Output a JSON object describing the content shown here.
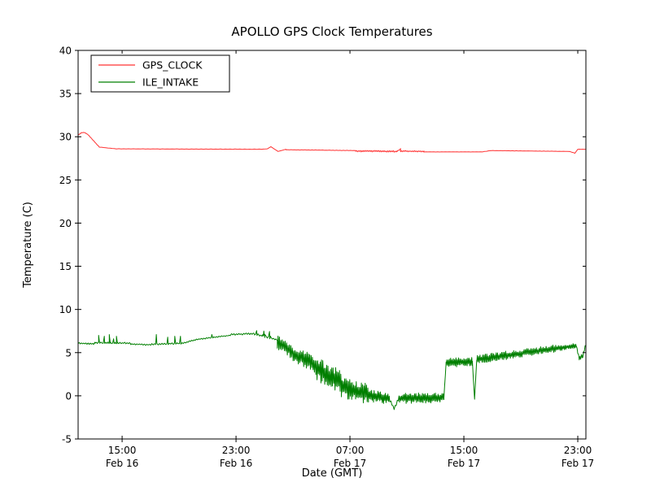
{
  "chart_data": {
    "type": "line",
    "title": "APOLLO GPS Clock Temperatures",
    "xlabel": "Date (GMT)",
    "ylabel": "Temperature (C)",
    "ylim": [
      -5,
      40
    ],
    "xlim_hours": [
      11.91,
      47.57
    ],
    "x_unit": "hours since Feb 16 00:00 GMT",
    "grid": false,
    "legend_position": "upper left",
    "yticks": [
      40,
      35,
      30,
      25,
      20,
      15,
      10,
      5,
      0,
      -5
    ],
    "xticks": [
      {
        "t": 15,
        "time": "15:00",
        "date": "Feb 16"
      },
      {
        "t": 23,
        "time": "23:00",
        "date": "Feb 16"
      },
      {
        "t": 31,
        "time": "07:00",
        "date": "Feb 17"
      },
      {
        "t": 39,
        "time": "15:00",
        "date": "Feb 17"
      },
      {
        "t": 47,
        "time": "23:00",
        "date": "Feb 17"
      }
    ],
    "noise_seed": 7,
    "segment_format": "[t_start_h, t_end_h, temp_start_C, temp_end_C, noise_amplitude_C, n_points]",
    "spike_format": "[t_h, base_C, peak_C]",
    "series": [
      {
        "name": "GPS_CLOCK",
        "color": "#ff3333",
        "segments": [
          [
            11.91,
            12.1,
            30.2,
            30.4,
            0.03,
            4
          ],
          [
            12.1,
            12.35,
            30.45,
            30.5,
            0.03,
            4
          ],
          [
            12.35,
            12.6,
            30.5,
            30.25,
            0.02,
            4
          ],
          [
            12.6,
            13.4,
            30.25,
            28.8,
            0.02,
            10
          ],
          [
            13.4,
            14.6,
            28.8,
            28.6,
            0.01,
            8
          ],
          [
            14.6,
            24.8,
            28.6,
            28.55,
            0.02,
            60
          ],
          [
            24.8,
            25.2,
            28.55,
            28.6,
            0,
            3
          ],
          [
            25.2,
            25.45,
            28.6,
            28.85,
            0,
            3
          ],
          [
            25.45,
            25.95,
            28.85,
            28.3,
            0,
            4
          ],
          [
            25.95,
            26.5,
            28.3,
            28.55,
            0,
            4
          ],
          [
            26.5,
            31.4,
            28.5,
            28.4,
            0.02,
            40
          ],
          [
            31.4,
            34.3,
            28.35,
            28.3,
            0.1,
            45
          ],
          [
            34.3,
            34.55,
            28.3,
            28.6,
            0.05,
            3
          ],
          [
            34.55,
            36.2,
            28.35,
            28.3,
            0.08,
            25
          ],
          [
            36.2,
            40.3,
            28.25,
            28.25,
            0.015,
            30
          ],
          [
            40.3,
            40.9,
            28.25,
            28.4,
            0.01,
            4
          ],
          [
            40.9,
            46.4,
            28.4,
            28.3,
            0.015,
            40
          ],
          [
            46.4,
            46.8,
            28.3,
            28.1,
            0.01,
            4
          ],
          [
            46.8,
            47.0,
            28.1,
            28.55,
            0,
            3
          ],
          [
            47.0,
            47.57,
            28.55,
            28.55,
            0.01,
            5
          ]
        ],
        "spikes": []
      },
      {
        "name": "ILE_INTAKE",
        "color": "#007f00",
        "segments": [
          [
            11.91,
            13.0,
            6.1,
            6.0,
            0.08,
            14
          ],
          [
            13.0,
            13.1,
            6.0,
            6.2,
            0,
            2
          ],
          [
            13.1,
            15.6,
            6.15,
            6.1,
            0.1,
            30
          ],
          [
            15.6,
            17.0,
            6.0,
            5.9,
            0.08,
            16
          ],
          [
            17.0,
            19.3,
            5.95,
            6.1,
            0.1,
            26
          ],
          [
            19.3,
            20.3,
            6.1,
            6.55,
            0.08,
            12
          ],
          [
            20.3,
            22.6,
            6.55,
            7.0,
            0.08,
            26
          ],
          [
            22.6,
            24.3,
            7.1,
            7.2,
            0.1,
            20
          ],
          [
            24.3,
            25.9,
            7.15,
            6.5,
            0.12,
            18
          ],
          [
            25.9,
            27.0,
            6.2,
            5.0,
            0.8,
            22
          ],
          [
            27.0,
            28.6,
            4.8,
            3.6,
            1.0,
            34
          ],
          [
            28.6,
            30.4,
            3.2,
            1.5,
            1.4,
            40
          ],
          [
            30.4,
            32.3,
            1.0,
            0.2,
            1.2,
            42
          ],
          [
            32.3,
            33.8,
            0.0,
            -0.3,
            0.7,
            34
          ],
          [
            33.8,
            34.1,
            -0.5,
            -1.5,
            0.2,
            4
          ],
          [
            34.1,
            34.4,
            -1.5,
            -0.4,
            0.2,
            4
          ],
          [
            34.4,
            37.6,
            -0.3,
            -0.2,
            0.6,
            70
          ],
          [
            37.6,
            37.75,
            -0.2,
            3.8,
            0.1,
            3
          ],
          [
            37.75,
            39.6,
            3.8,
            4.0,
            0.55,
            40
          ],
          [
            39.6,
            39.75,
            4.0,
            -0.4,
            0,
            2
          ],
          [
            39.75,
            39.9,
            -0.4,
            4.1,
            0,
            2
          ],
          [
            39.9,
            42.5,
            4.2,
            4.8,
            0.5,
            55
          ],
          [
            42.5,
            45.5,
            4.8,
            5.5,
            0.45,
            62
          ],
          [
            45.5,
            46.9,
            5.5,
            5.8,
            0.35,
            30
          ],
          [
            46.9,
            47.1,
            5.8,
            4.3,
            0.15,
            4
          ],
          [
            47.1,
            47.35,
            4.3,
            4.6,
            0.3,
            5
          ],
          [
            47.35,
            47.57,
            4.6,
            6.0,
            0.2,
            4
          ]
        ],
        "spikes": [
          [
            13.35,
            6.1,
            7.0
          ],
          [
            13.75,
            6.1,
            6.9
          ],
          [
            14.1,
            6.1,
            7.1
          ],
          [
            14.4,
            6.1,
            6.6
          ],
          [
            14.6,
            6.1,
            6.9
          ],
          [
            17.4,
            6.0,
            7.1
          ],
          [
            18.2,
            6.0,
            6.8
          ],
          [
            18.7,
            6.0,
            6.9
          ],
          [
            19.1,
            6.05,
            6.9
          ],
          [
            21.3,
            6.7,
            7.1
          ],
          [
            24.45,
            7.15,
            7.55
          ],
          [
            24.95,
            7.1,
            7.5
          ],
          [
            25.35,
            6.9,
            7.45
          ]
        ]
      }
    ]
  }
}
